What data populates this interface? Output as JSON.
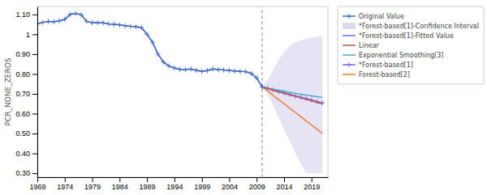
{
  "chart_data": {
    "type": "line",
    "y_label": "PCR_NONE_ZEROS",
    "xlim": [
      1969,
      2022
    ],
    "ylim": [
      0.28,
      1.14
    ],
    "xticks": [
      1969,
      1974,
      1979,
      1984,
      1989,
      1994,
      1999,
      2004,
      2009,
      2014,
      2019
    ],
    "yticks": [
      {
        "value": 0.3,
        "label": "0.30"
      },
      {
        "value": 0.4,
        "label": "0.40"
      },
      {
        "value": 0.5,
        "label": "0.50"
      },
      {
        "value": 0.6,
        "label": "0.60"
      },
      {
        "value": 0.7,
        "label": "0.70"
      },
      {
        "value": 0.8,
        "label": "0.80"
      },
      {
        "value": 0.9,
        "label": "0.90"
      },
      1,
      {
        "value": 1.1,
        "label": "1.10"
      }
    ],
    "grid": false,
    "legend": "right",
    "split_x": 2010,
    "series": [
      {
        "name": "Original Value",
        "type": "line",
        "color": "#4472C4",
        "marker": "plus",
        "x": [
          1969,
          1970,
          1971,
          1972,
          1973,
          1974,
          1975,
          1976,
          1977,
          1978,
          1979,
          1980,
          1981,
          1982,
          1983,
          1984,
          1985,
          1986,
          1987,
          1988,
          1989,
          1990,
          1991,
          1992,
          1993,
          1994,
          1995,
          1996,
          1997,
          1998,
          1999,
          2000,
          2001,
          2002,
          2003,
          2004,
          2005,
          2006,
          2007,
          2008,
          2009,
          2010
        ],
        "values": [
          1.052,
          1.06,
          1.065,
          1.063,
          1.068,
          1.075,
          1.1,
          1.105,
          1.098,
          1.065,
          1.058,
          1.058,
          1.057,
          1.052,
          1.05,
          1.047,
          1.043,
          1.04,
          1.038,
          1.033,
          1.0,
          0.96,
          0.9,
          0.86,
          0.84,
          0.83,
          0.823,
          0.822,
          0.825,
          0.818,
          0.813,
          0.817,
          0.825,
          0.822,
          0.82,
          0.818,
          0.815,
          0.813,
          0.812,
          0.803,
          0.78,
          0.735
        ]
      },
      {
        "name": "*Forest-based[1]-Confidence Interval",
        "type": "area",
        "color": "#C8C0E8",
        "x": [
          2010,
          2011,
          2012,
          2013,
          2014,
          2015,
          2016,
          2017,
          2018,
          2019,
          2020,
          2021
        ],
        "upper": [
          0.735,
          0.77,
          0.82,
          0.87,
          0.91,
          0.94,
          0.96,
          0.97,
          0.978,
          0.983,
          0.988,
          0.992
        ],
        "lower": [
          0.735,
          0.7,
          0.64,
          0.58,
          0.52,
          0.462,
          0.405,
          0.35,
          0.3,
          0.3,
          0.3,
          0.3
        ]
      },
      {
        "name": "*Forest-based[1]-Fitted Value",
        "type": "line",
        "color": "#7B68EE",
        "x": [
          1969,
          1970,
          1971,
          1972,
          1973,
          1974,
          1975,
          1976,
          1977,
          1978,
          1979,
          1980,
          1981,
          1982,
          1983,
          1984,
          1985,
          1986,
          1987,
          1988,
          1989,
          1990,
          1991,
          1992,
          1993,
          1994,
          1995,
          1996,
          1997,
          1998,
          1999,
          2000,
          2001,
          2002,
          2003,
          2004,
          2005,
          2006,
          2007,
          2008,
          2009,
          2010
        ],
        "values": [
          1.052,
          1.06,
          1.065,
          1.063,
          1.068,
          1.075,
          1.1,
          1.105,
          1.098,
          1.065,
          1.058,
          1.058,
          1.057,
          1.052,
          1.05,
          1.047,
          1.043,
          1.04,
          1.038,
          1.033,
          1.0,
          0.96,
          0.9,
          0.86,
          0.84,
          0.83,
          0.823,
          0.822,
          0.825,
          0.818,
          0.813,
          0.817,
          0.825,
          0.822,
          0.82,
          0.818,
          0.815,
          0.813,
          0.812,
          0.803,
          0.78,
          0.735
        ]
      },
      {
        "name": "Linear",
        "type": "line",
        "color": "#C0504D",
        "x": [
          2010,
          2011,
          2012,
          2013,
          2014,
          2015,
          2016,
          2017,
          2018,
          2019,
          2020,
          2021
        ],
        "values": [
          0.735,
          0.727,
          0.718,
          0.71,
          0.703,
          0.695,
          0.688,
          0.68,
          0.672,
          0.665,
          0.657,
          0.65
        ]
      },
      {
        "name": "Exponential Smoothing[3]",
        "type": "line",
        "color": "#4BACC6",
        "x": [
          2010,
          2011,
          2012,
          2013,
          2014,
          2015,
          2016,
          2017,
          2018,
          2019,
          2020,
          2021
        ],
        "values": [
          0.735,
          0.729,
          0.723,
          0.718,
          0.713,
          0.708,
          0.703,
          0.698,
          0.694,
          0.69,
          0.686,
          0.682
        ]
      },
      {
        "name": "*Forest-based[1]",
        "type": "line",
        "color": "#7B68EE",
        "marker": "plus",
        "x": [
          2010,
          2011,
          2012,
          2013,
          2014,
          2015,
          2016,
          2017,
          2018,
          2019,
          2020,
          2021
        ],
        "values": [
          0.735,
          0.727,
          0.72,
          0.712,
          0.705,
          0.698,
          0.69,
          0.683,
          0.676,
          0.668,
          0.661,
          0.654
        ]
      },
      {
        "name": "Forest-based[2]",
        "type": "line",
        "color": "#ED7D31",
        "x": [
          2010,
          2011,
          2012,
          2013,
          2014,
          2015,
          2016,
          2017,
          2018,
          2019,
          2020,
          2021
        ],
        "values": [
          0.735,
          0.714,
          0.692,
          0.671,
          0.65,
          0.628,
          0.607,
          0.586,
          0.564,
          0.543,
          0.522,
          0.5
        ]
      }
    ]
  }
}
